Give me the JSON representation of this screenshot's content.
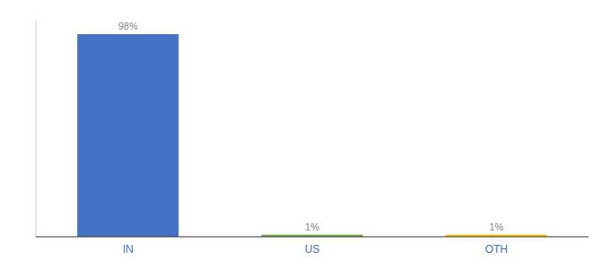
{
  "chart_data": {
    "type": "bar",
    "categories": [
      "IN",
      "US",
      "OTH"
    ],
    "values": [
      98,
      1,
      1
    ],
    "value_labels": [
      "98%",
      "1%",
      "1%"
    ],
    "colors": [
      "#4472C4",
      "#70AD47",
      "#FFC000"
    ],
    "ylim": [
      0,
      105
    ],
    "data_labels": true,
    "tick_labels": "x",
    "grid": false
  }
}
